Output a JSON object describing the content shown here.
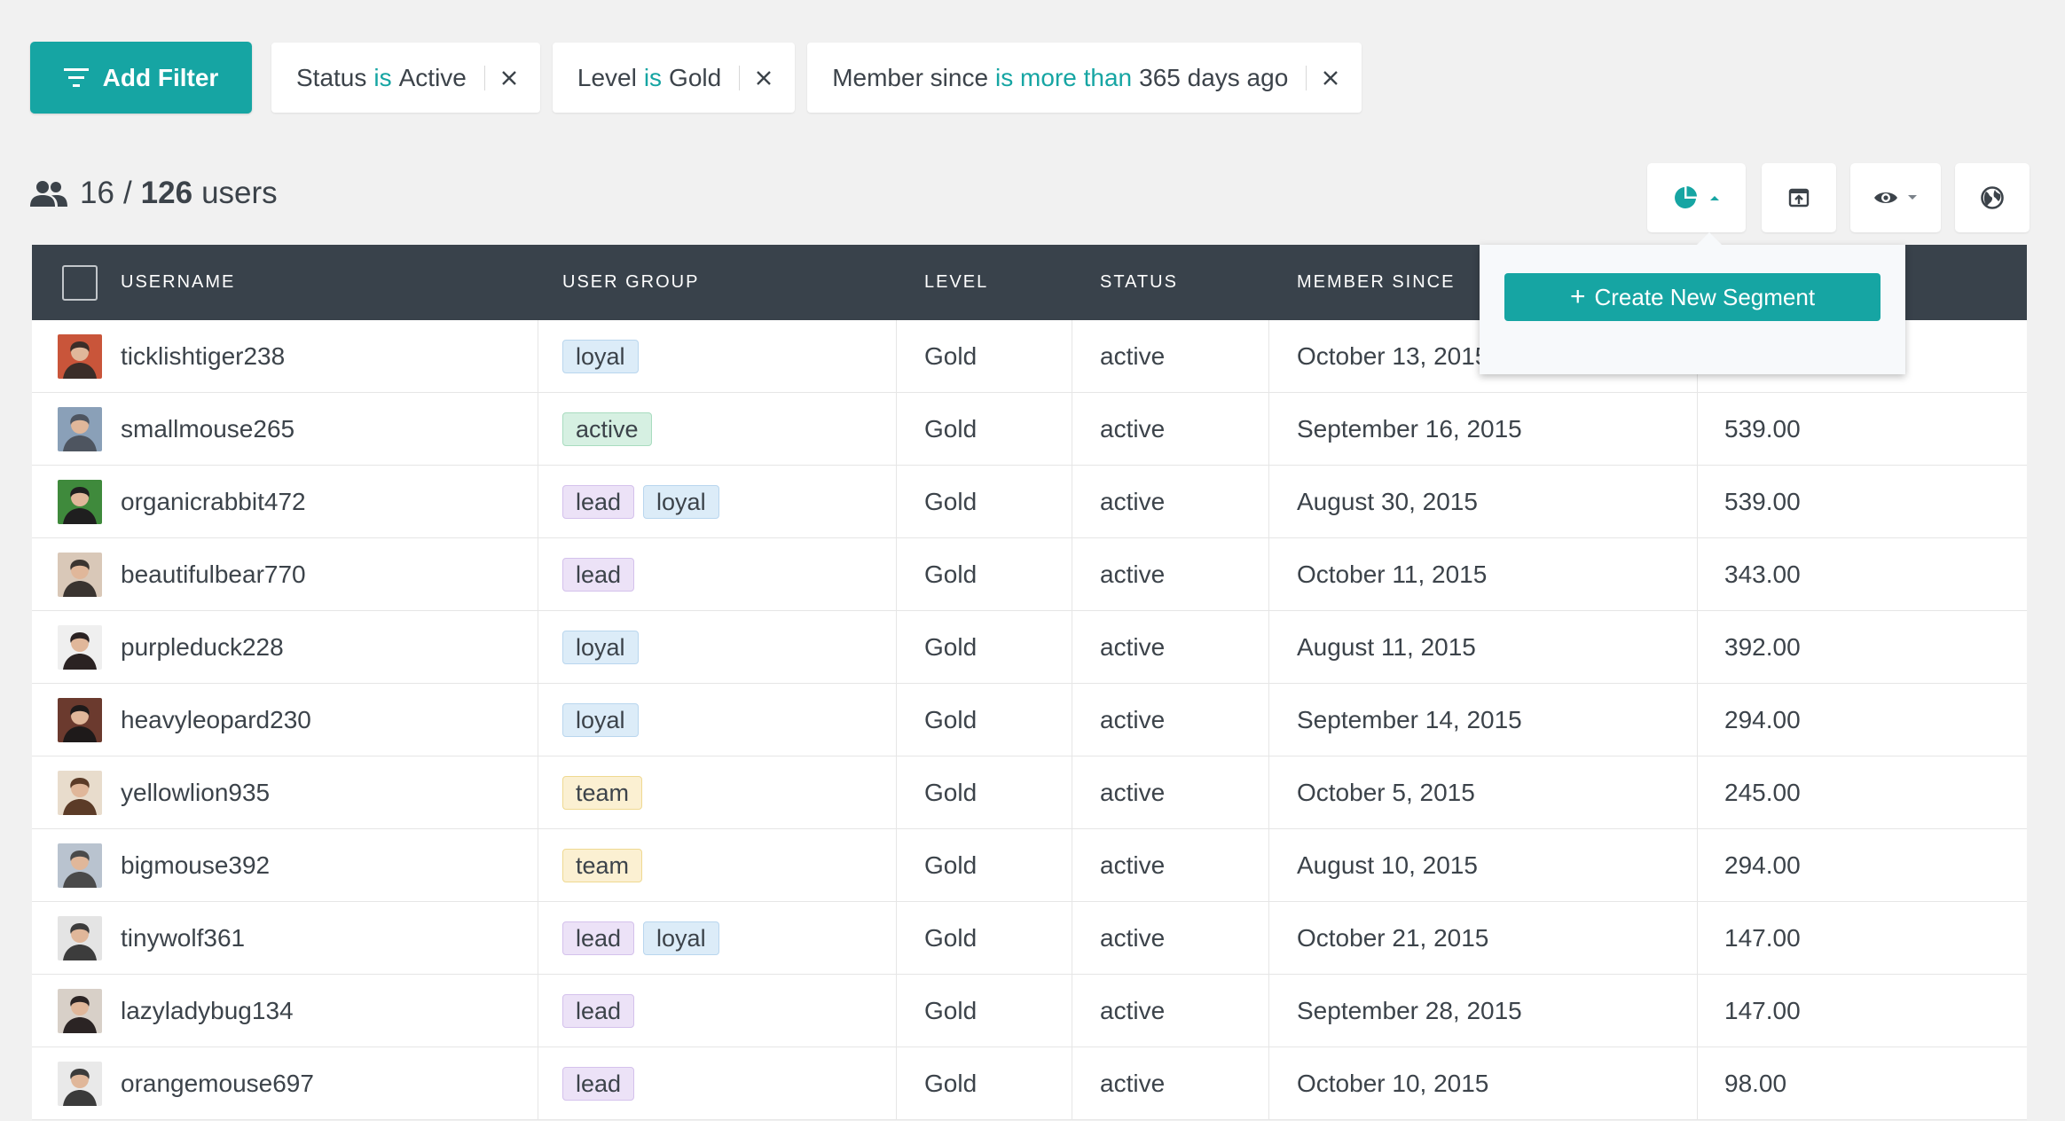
{
  "filter_bar": {
    "add_filter_label": "Add Filter",
    "filters": [
      {
        "field": "Status",
        "operator": "is",
        "value": "Active"
      },
      {
        "field": "Level",
        "operator": "is",
        "value": "Gold"
      },
      {
        "field": "Member since",
        "operator": "is more than",
        "value": "365 days ago"
      }
    ]
  },
  "count": {
    "shown": "16",
    "separator": "/",
    "total": "126",
    "unit": "users"
  },
  "toolbar": {
    "icons": [
      "segment-pie-icon",
      "caret-up-icon",
      "export-icon",
      "eye-icon",
      "caret-down-icon",
      "globe-icon"
    ]
  },
  "table": {
    "headers": {
      "username": "USERNAME",
      "user_group": "USER GROUP",
      "level": "LEVEL",
      "status": "STATUS",
      "member_since": "MEMBER SINCE"
    },
    "rows": [
      {
        "username": "ticklishtiger238",
        "groups": [
          "loyal"
        ],
        "level": "Gold",
        "status": "active",
        "member_since": "October 13, 2015",
        "amount": ""
      },
      {
        "username": "smallmouse265",
        "groups": [
          "active"
        ],
        "level": "Gold",
        "status": "active",
        "member_since": "September 16, 2015",
        "amount": "539.00"
      },
      {
        "username": "organicrabbit472",
        "groups": [
          "lead",
          "loyal"
        ],
        "level": "Gold",
        "status": "active",
        "member_since": "August 30, 2015",
        "amount": "539.00"
      },
      {
        "username": "beautifulbear770",
        "groups": [
          "lead"
        ],
        "level": "Gold",
        "status": "active",
        "member_since": "October 11, 2015",
        "amount": "343.00"
      },
      {
        "username": "purpleduck228",
        "groups": [
          "loyal"
        ],
        "level": "Gold",
        "status": "active",
        "member_since": "August 11, 2015",
        "amount": "392.00"
      },
      {
        "username": "heavyleopard230",
        "groups": [
          "loyal"
        ],
        "level": "Gold",
        "status": "active",
        "member_since": "September 14, 2015",
        "amount": "294.00"
      },
      {
        "username": "yellowlion935",
        "groups": [
          "team"
        ],
        "level": "Gold",
        "status": "active",
        "member_since": "October 5, 2015",
        "amount": "245.00"
      },
      {
        "username": "bigmouse392",
        "groups": [
          "team"
        ],
        "level": "Gold",
        "status": "active",
        "member_since": "August 10, 2015",
        "amount": "294.00"
      },
      {
        "username": "tinywolf361",
        "groups": [
          "lead",
          "loyal"
        ],
        "level": "Gold",
        "status": "active",
        "member_since": "October 21, 2015",
        "amount": "147.00"
      },
      {
        "username": "lazyladybug134",
        "groups": [
          "lead"
        ],
        "level": "Gold",
        "status": "active",
        "member_since": "September 28, 2015",
        "amount": "147.00"
      },
      {
        "username": "orangemouse697",
        "groups": [
          "lead"
        ],
        "level": "Gold",
        "status": "active",
        "member_since": "October 10, 2015",
        "amount": "98.00"
      }
    ]
  },
  "segment_popup": {
    "create_label": "Create New Segment",
    "plus": "+"
  },
  "colors": {
    "accent": "#16a5a3",
    "header_bg": "#39424b",
    "page_bg": "#f1f1f1"
  },
  "avatar_colors": [
    [
      "#c9553a",
      "#3a2d28"
    ],
    [
      "#8aa0b8",
      "#4e5560"
    ],
    [
      "#3f8a3c",
      "#1f1f1f"
    ],
    [
      "#d9c8b8",
      "#3a3430"
    ],
    [
      "#efefef",
      "#2a2222"
    ],
    [
      "#6b3a2e",
      "#1e1a1a"
    ],
    [
      "#e8dccc",
      "#5b3b27"
    ],
    [
      "#b9c3cf",
      "#4a4a4a"
    ],
    [
      "#e4e4e4",
      "#3c3c3c"
    ],
    [
      "#d8d0c8",
      "#2b2424"
    ],
    [
      "#e9e9e9",
      "#3b3b3b"
    ]
  ]
}
